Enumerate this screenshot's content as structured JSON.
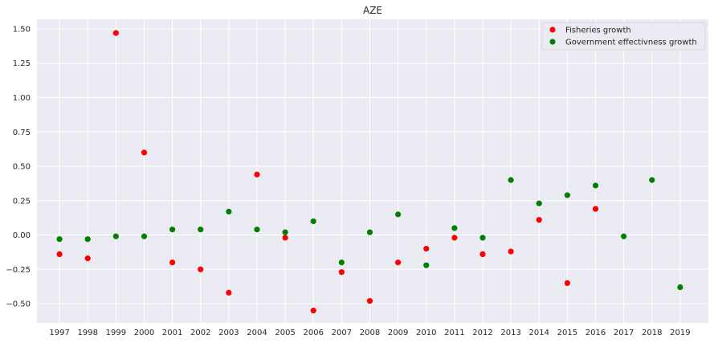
{
  "chart_data": {
    "type": "scatter",
    "title": "AZE",
    "xlabel": "",
    "ylabel": "",
    "x_ticks": [
      "1997",
      "1998",
      "1999",
      "2000",
      "2001",
      "2002",
      "2003",
      "2004",
      "2005",
      "2006",
      "2007",
      "2008",
      "2009",
      "2010",
      "2011",
      "2012",
      "2013",
      "2014",
      "2015",
      "2016",
      "2017",
      "2018",
      "2019"
    ],
    "y_ticks": [
      "−0.50",
      "−0.25",
      "0.00",
      "0.25",
      "0.50",
      "0.75",
      "1.00",
      "1.25",
      "1.50"
    ],
    "ylim": [
      -0.64,
      1.57
    ],
    "xlim": [
      1996.2,
      2020.0
    ],
    "grid": true,
    "legend_position": "top-right",
    "series": [
      {
        "name": "Fisheries growth",
        "color": "#ff0000",
        "points": [
          [
            1997,
            -0.14
          ],
          [
            1998,
            -0.17
          ],
          [
            1999,
            1.47
          ],
          [
            2000,
            0.6
          ],
          [
            2001,
            -0.2
          ],
          [
            2002,
            -0.25
          ],
          [
            2003,
            -0.42
          ],
          [
            2004,
            0.44
          ],
          [
            2005,
            -0.02
          ],
          [
            2006,
            -0.55
          ],
          [
            2007,
            -0.27
          ],
          [
            2008,
            -0.48
          ],
          [
            2009,
            -0.2
          ],
          [
            2010,
            -0.1
          ],
          [
            2011,
            -0.02
          ],
          [
            2012,
            -0.14
          ],
          [
            2013,
            -0.12
          ],
          [
            2014,
            0.11
          ],
          [
            2015,
            -0.35
          ],
          [
            2016,
            0.19
          ]
        ]
      },
      {
        "name": "Government effectivness growth",
        "color": "#008000",
        "points": [
          [
            1997,
            -0.03
          ],
          [
            1998,
            -0.03
          ],
          [
            1999,
            -0.01
          ],
          [
            2000,
            -0.01
          ],
          [
            2001,
            0.04
          ],
          [
            2002,
            0.04
          ],
          [
            2003,
            0.17
          ],
          [
            2004,
            0.04
          ],
          [
            2005,
            0.02
          ],
          [
            2006,
            0.1
          ],
          [
            2007,
            -0.2
          ],
          [
            2008,
            0.02
          ],
          [
            2009,
            0.15
          ],
          [
            2010,
            -0.22
          ],
          [
            2011,
            0.05
          ],
          [
            2012,
            -0.02
          ],
          [
            2013,
            0.4
          ],
          [
            2014,
            0.23
          ],
          [
            2015,
            0.29
          ],
          [
            2016,
            0.36
          ],
          [
            2017,
            -0.01
          ],
          [
            2018,
            0.4
          ],
          [
            2019,
            -0.38
          ]
        ]
      }
    ]
  }
}
